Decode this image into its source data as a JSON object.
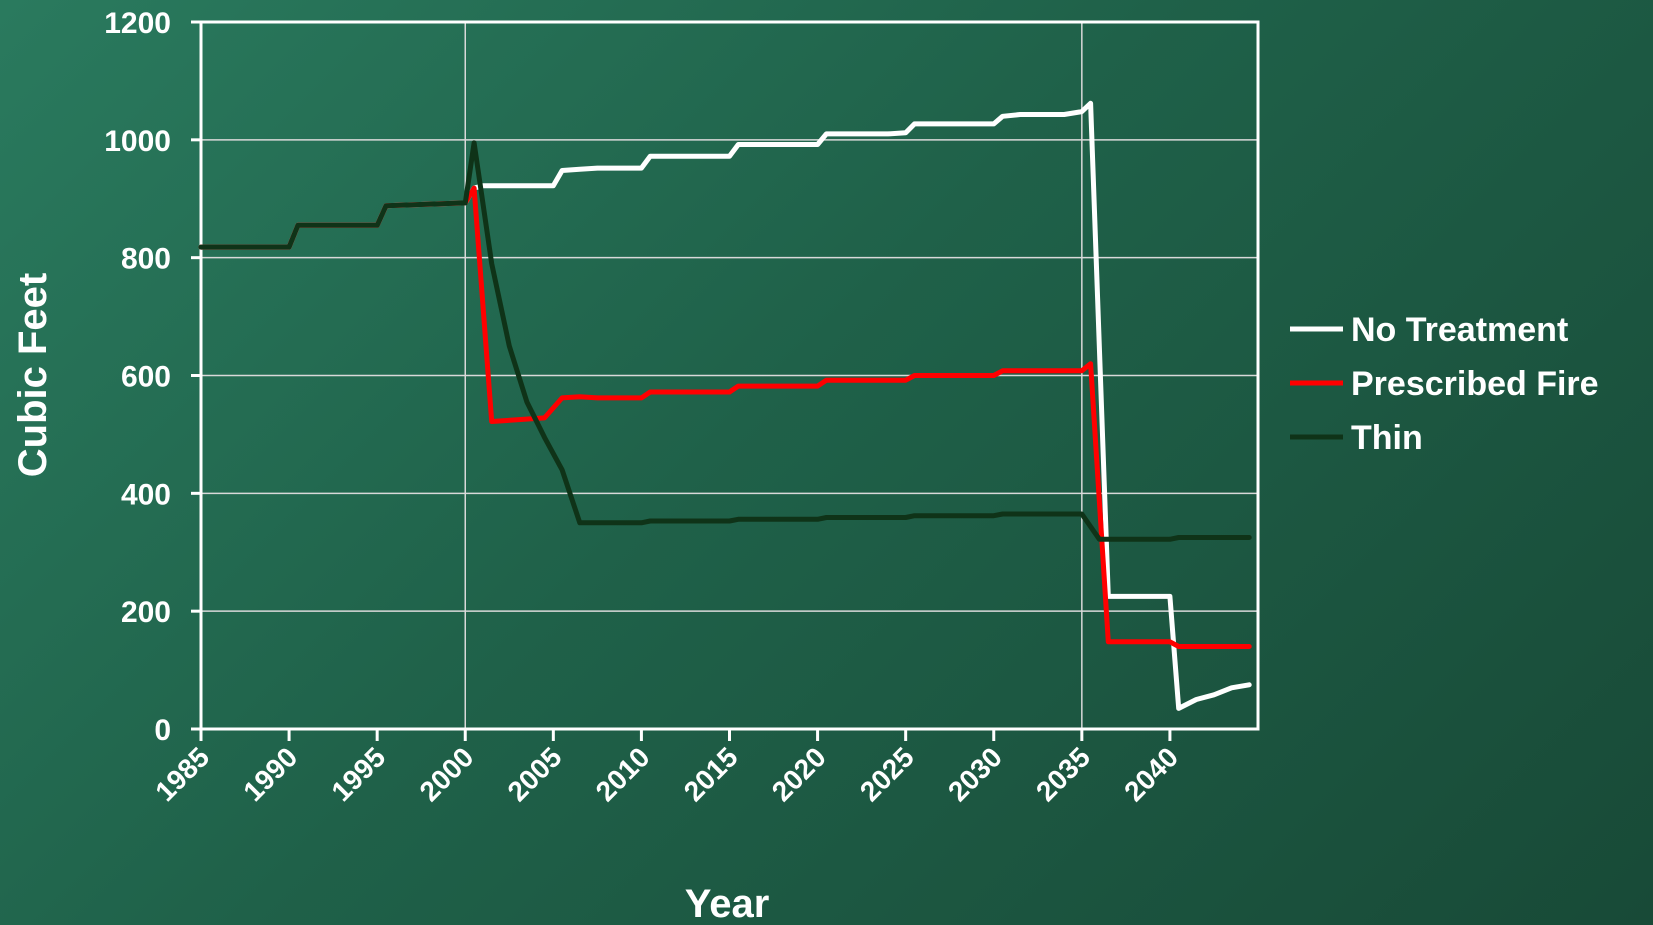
{
  "chart_data": {
    "type": "line",
    "xlabel": "Year",
    "ylabel": "Cubic Feet",
    "xlim": [
      1985,
      2045
    ],
    "ylim": [
      0,
      1200
    ],
    "yticks": [
      0,
      200,
      400,
      600,
      800,
      1000,
      1200
    ],
    "xticks": [
      1985,
      1990,
      1995,
      2000,
      2005,
      2010,
      2015,
      2020,
      2025,
      2030,
      2035,
      2040
    ],
    "xtick_labels": [
      "1985",
      "1990",
      "1995",
      "2000",
      "2005",
      "2010",
      "2015",
      "2020",
      "2025",
      "2030",
      "2035",
      "2040"
    ],
    "ytick_labels": [
      "0",
      "200",
      "400",
      "600",
      "800",
      "1000",
      "1200"
    ],
    "grid": {
      "horizontal": true,
      "vertical_at": [
        2000,
        2035
      ]
    },
    "legend_position": "right",
    "colors": {
      "axes": "#ffffff",
      "grid": "#d9d9d9",
      "No Treatment": "#ffffff",
      "Prescribed Fire": "#ff0000",
      "Thin": "#0f3318"
    },
    "series": [
      {
        "name": "No Treatment",
        "points": [
          [
            1985,
            818
          ],
          [
            1990,
            818
          ],
          [
            1990.5,
            855
          ],
          [
            1995,
            855
          ],
          [
            1995.5,
            888
          ],
          [
            2000,
            893
          ],
          [
            2000.5,
            918
          ],
          [
            2001,
            922
          ],
          [
            2005,
            922
          ],
          [
            2005.5,
            948
          ],
          [
            2006.5,
            950
          ],
          [
            2007.5,
            952
          ],
          [
            2010,
            952
          ],
          [
            2010.5,
            972
          ],
          [
            2015,
            972
          ],
          [
            2015.5,
            992
          ],
          [
            2020,
            992
          ],
          [
            2020.5,
            1010
          ],
          [
            2024,
            1010
          ],
          [
            2025,
            1012
          ],
          [
            2025.5,
            1027
          ],
          [
            2030,
            1027
          ],
          [
            2030.5,
            1040
          ],
          [
            2031.5,
            1043
          ],
          [
            2034,
            1043
          ],
          [
            2035,
            1048
          ],
          [
            2035.5,
            1062
          ],
          [
            2036.5,
            225
          ],
          [
            2040,
            225
          ],
          [
            2040.5,
            35
          ],
          [
            2041.5,
            50
          ],
          [
            2042.5,
            58
          ],
          [
            2043.5,
            70
          ],
          [
            2044.5,
            75
          ]
        ]
      },
      {
        "name": "Prescribed Fire",
        "points": [
          [
            1985,
            818
          ],
          [
            1990,
            818
          ],
          [
            1990.5,
            855
          ],
          [
            1995,
            855
          ],
          [
            1995.5,
            888
          ],
          [
            2000,
            893
          ],
          [
            2000.5,
            918
          ],
          [
            2001.5,
            522
          ],
          [
            2004.5,
            528
          ],
          [
            2005.5,
            562
          ],
          [
            2006.5,
            564
          ],
          [
            2007.5,
            562
          ],
          [
            2010,
            562
          ],
          [
            2010.5,
            572
          ],
          [
            2015,
            572
          ],
          [
            2015.5,
            582
          ],
          [
            2020,
            582
          ],
          [
            2020.5,
            592
          ],
          [
            2025,
            592
          ],
          [
            2025.5,
            600
          ],
          [
            2030,
            600
          ],
          [
            2030.5,
            608
          ],
          [
            2035,
            608
          ],
          [
            2035.5,
            620
          ],
          [
            2036.5,
            148
          ],
          [
            2040,
            148
          ],
          [
            2040.5,
            140
          ],
          [
            2044.5,
            140
          ]
        ]
      },
      {
        "name": "Thin",
        "points": [
          [
            1985,
            818
          ],
          [
            1990,
            818
          ],
          [
            1990.5,
            855
          ],
          [
            1995,
            855
          ],
          [
            1995.5,
            888
          ],
          [
            2000,
            893
          ],
          [
            2000.5,
            995
          ],
          [
            2001.5,
            790
          ],
          [
            2002.5,
            650
          ],
          [
            2003.5,
            555
          ],
          [
            2004.5,
            495
          ],
          [
            2005.5,
            440
          ],
          [
            2006.5,
            350
          ],
          [
            2010,
            350
          ],
          [
            2010.5,
            353
          ],
          [
            2015,
            353
          ],
          [
            2015.5,
            356
          ],
          [
            2020,
            356
          ],
          [
            2020.5,
            359
          ],
          [
            2025,
            359
          ],
          [
            2025.5,
            362
          ],
          [
            2030,
            362
          ],
          [
            2030.5,
            365
          ],
          [
            2035,
            365
          ],
          [
            2036,
            322
          ],
          [
            2040,
            322
          ],
          [
            2040.5,
            325
          ],
          [
            2044.5,
            325
          ]
        ]
      }
    ]
  }
}
